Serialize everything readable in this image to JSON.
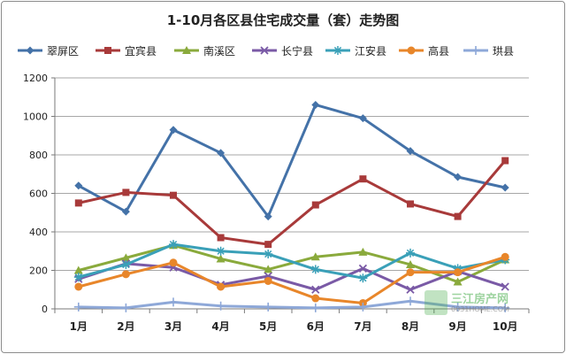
{
  "chart_data": {
    "type": "line",
    "title": "1-10月各区县住宅成交量（套）走势图",
    "categories": [
      "1月",
      "2月",
      "3月",
      "4月",
      "5月",
      "6月",
      "7月",
      "8月",
      "9月",
      "10月"
    ],
    "ylim": [
      0,
      1200
    ],
    "yticks": [
      0,
      200,
      400,
      600,
      800,
      1000,
      1200
    ],
    "grid": true,
    "legend": "top",
    "series": [
      {
        "name": "翠屏区",
        "color": "#4472a8",
        "marker": "diamond",
        "values": [
          640,
          505,
          930,
          810,
          480,
          1060,
          990,
          820,
          685,
          630
        ]
      },
      {
        "name": "宜宾县",
        "color": "#a83a3a",
        "marker": "square",
        "values": [
          550,
          605,
          590,
          370,
          335,
          540,
          675,
          545,
          480,
          770
        ]
      },
      {
        "name": "南溪区",
        "color": "#8aaa3c",
        "marker": "triangle",
        "values": [
          200,
          265,
          330,
          260,
          205,
          270,
          295,
          230,
          140,
          255
        ]
      },
      {
        "name": "长宁县",
        "color": "#7a5aa6",
        "marker": "x",
        "values": [
          155,
          235,
          215,
          125,
          170,
          100,
          210,
          100,
          195,
          115
        ]
      },
      {
        "name": "江安县",
        "color": "#3aa0b8",
        "marker": "star",
        "values": [
          165,
          230,
          335,
          300,
          285,
          205,
          160,
          290,
          210,
          255
        ]
      },
      {
        "name": "高县",
        "color": "#e8862a",
        "marker": "circle",
        "values": [
          115,
          180,
          240,
          115,
          145,
          55,
          30,
          190,
          190,
          270
        ]
      },
      {
        "name": "珙县",
        "color": "#8ea8d8",
        "marker": "plus",
        "values": [
          10,
          5,
          35,
          15,
          10,
          5,
          10,
          40,
          10,
          5
        ]
      }
    ]
  },
  "watermark": {
    "text": "三江房产网",
    "url": "0831HOME.COM"
  }
}
